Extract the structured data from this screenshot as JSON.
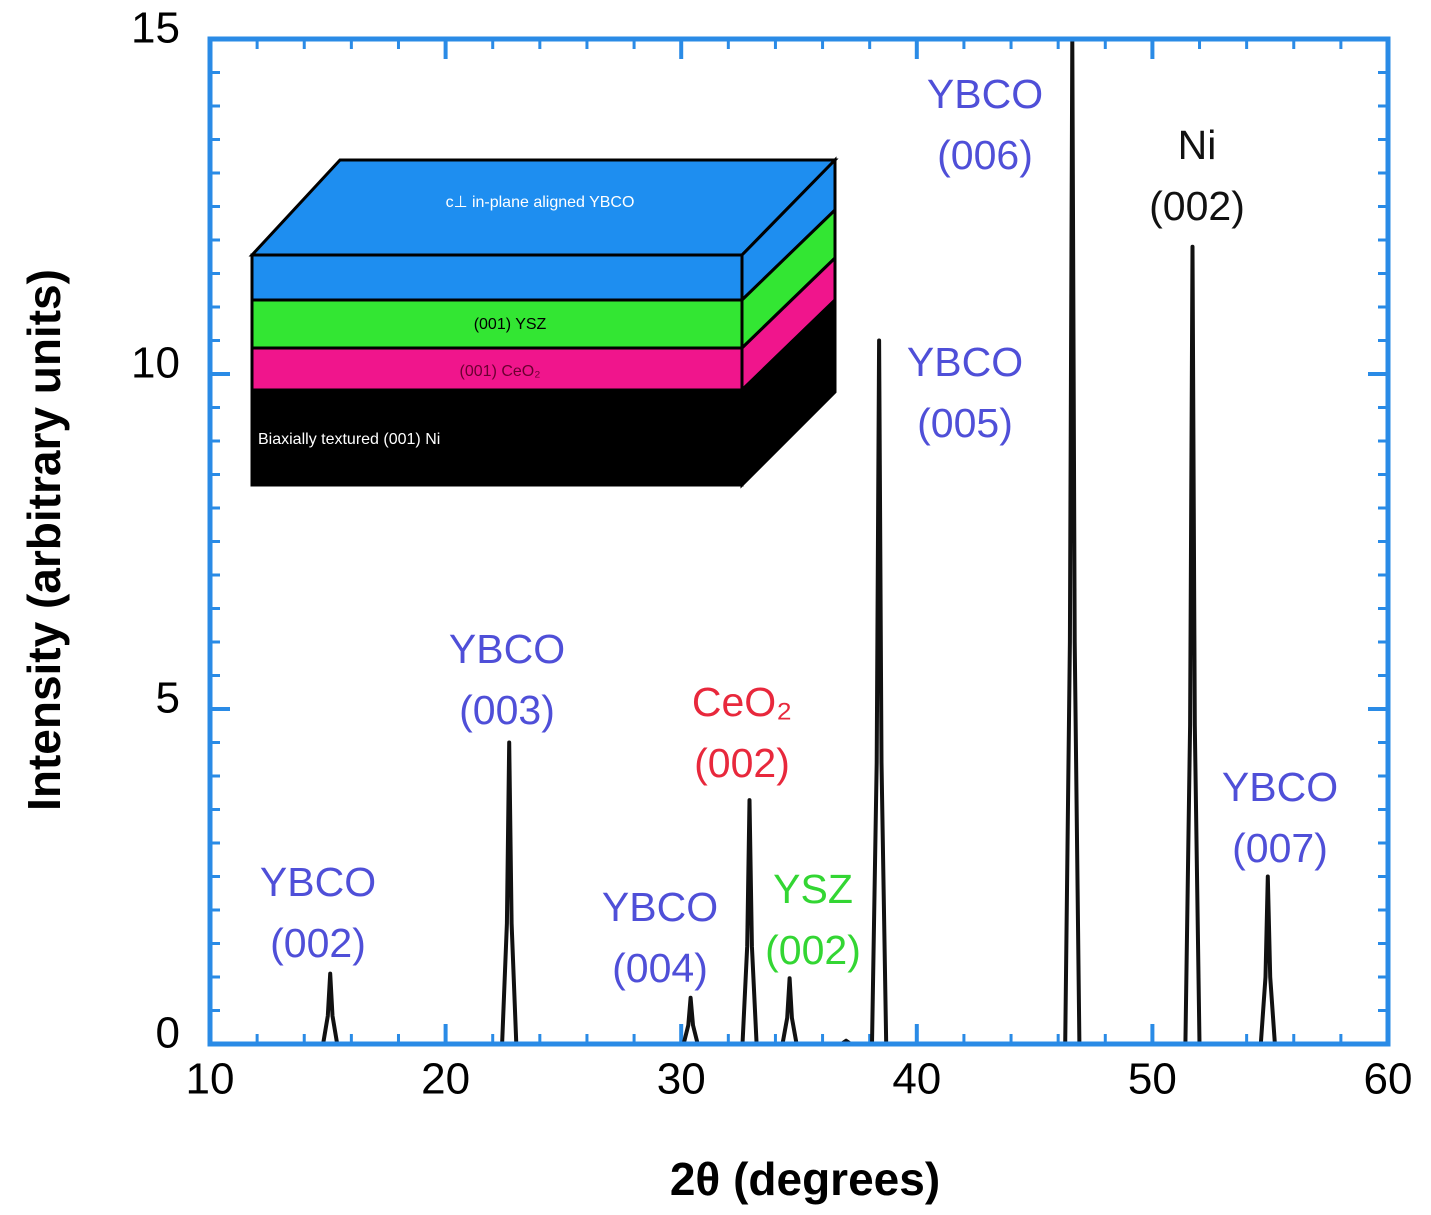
{
  "chart_data": {
    "type": "line",
    "xlabel": "2θ (degrees)",
    "ylabel": "Intensity (arbitrary units)",
    "xlim": [
      10,
      60
    ],
    "ylim": [
      0,
      15
    ],
    "xticks": [
      10,
      20,
      30,
      40,
      50,
      60
    ],
    "yticks": [
      0,
      5,
      10,
      15
    ],
    "x_minor_step": 2,
    "y_minor_step": 0.5,
    "frame_color": "#2a8be6",
    "color": "#111111",
    "x": [
      10,
      14.8,
      15.0,
      15.1,
      15.2,
      15.4,
      22.4,
      22.6,
      22.7,
      22.8,
      23.0,
      30.1,
      30.3,
      30.4,
      30.5,
      30.7,
      32.6,
      32.8,
      32.9,
      33.0,
      33.2,
      34.3,
      34.5,
      34.6,
      34.7,
      34.9,
      36.8,
      37.0,
      37.2,
      38.1,
      38.3,
      38.4,
      38.5,
      38.7,
      46.3,
      46.5,
      46.6,
      46.7,
      46.9,
      51.4,
      51.6,
      51.7,
      51.8,
      52.0,
      54.6,
      54.8,
      54.9,
      55.0,
      55.2,
      60
    ],
    "values": [
      0,
      0,
      0.42,
      1.05,
      0.42,
      0,
      0,
      1.8,
      4.5,
      1.8,
      0,
      0,
      0.28,
      0.69,
      0.28,
      0,
      0,
      1.46,
      3.64,
      1.46,
      0,
      0,
      0.39,
      0.98,
      0.39,
      0,
      0,
      0.05,
      0,
      0,
      4.2,
      10.5,
      4.2,
      0,
      0,
      6,
      15,
      6,
      0,
      0,
      4.76,
      11.9,
      4.76,
      0,
      0,
      1.0,
      2.5,
      1.0,
      0,
      0
    ],
    "annotations": [
      {
        "lines": [
          "YBCO",
          "(002)"
        ],
        "color": "#4f4fd8"
      },
      {
        "lines": [
          "YBCO",
          "(003)"
        ],
        "color": "#4f4fd8"
      },
      {
        "lines": [
          "YBCO",
          "(004)"
        ],
        "color": "#4f4fd8"
      },
      {
        "lines": [
          "CeO₂",
          "(002)"
        ],
        "color": "#e8283c"
      },
      {
        "lines": [
          "YSZ",
          "(002)"
        ],
        "color": "#33d633"
      },
      {
        "lines": [
          "YBCO",
          "(005)"
        ],
        "color": "#4f4fd8"
      },
      {
        "lines": [
          "YBCO",
          "(006)"
        ],
        "color": "#4f4fd8"
      },
      {
        "lines": [
          "Ni",
          "(002)"
        ],
        "color": "#111111"
      },
      {
        "lines": [
          "YBCO",
          "(007)"
        ],
        "color": "#4f4fd8"
      }
    ],
    "inset": {
      "layers": [
        "c⊥ in-plane aligned YBCO",
        "(001) YSZ",
        "(001) CeO₂",
        "Biaxially textured (001) Ni"
      ]
    }
  }
}
